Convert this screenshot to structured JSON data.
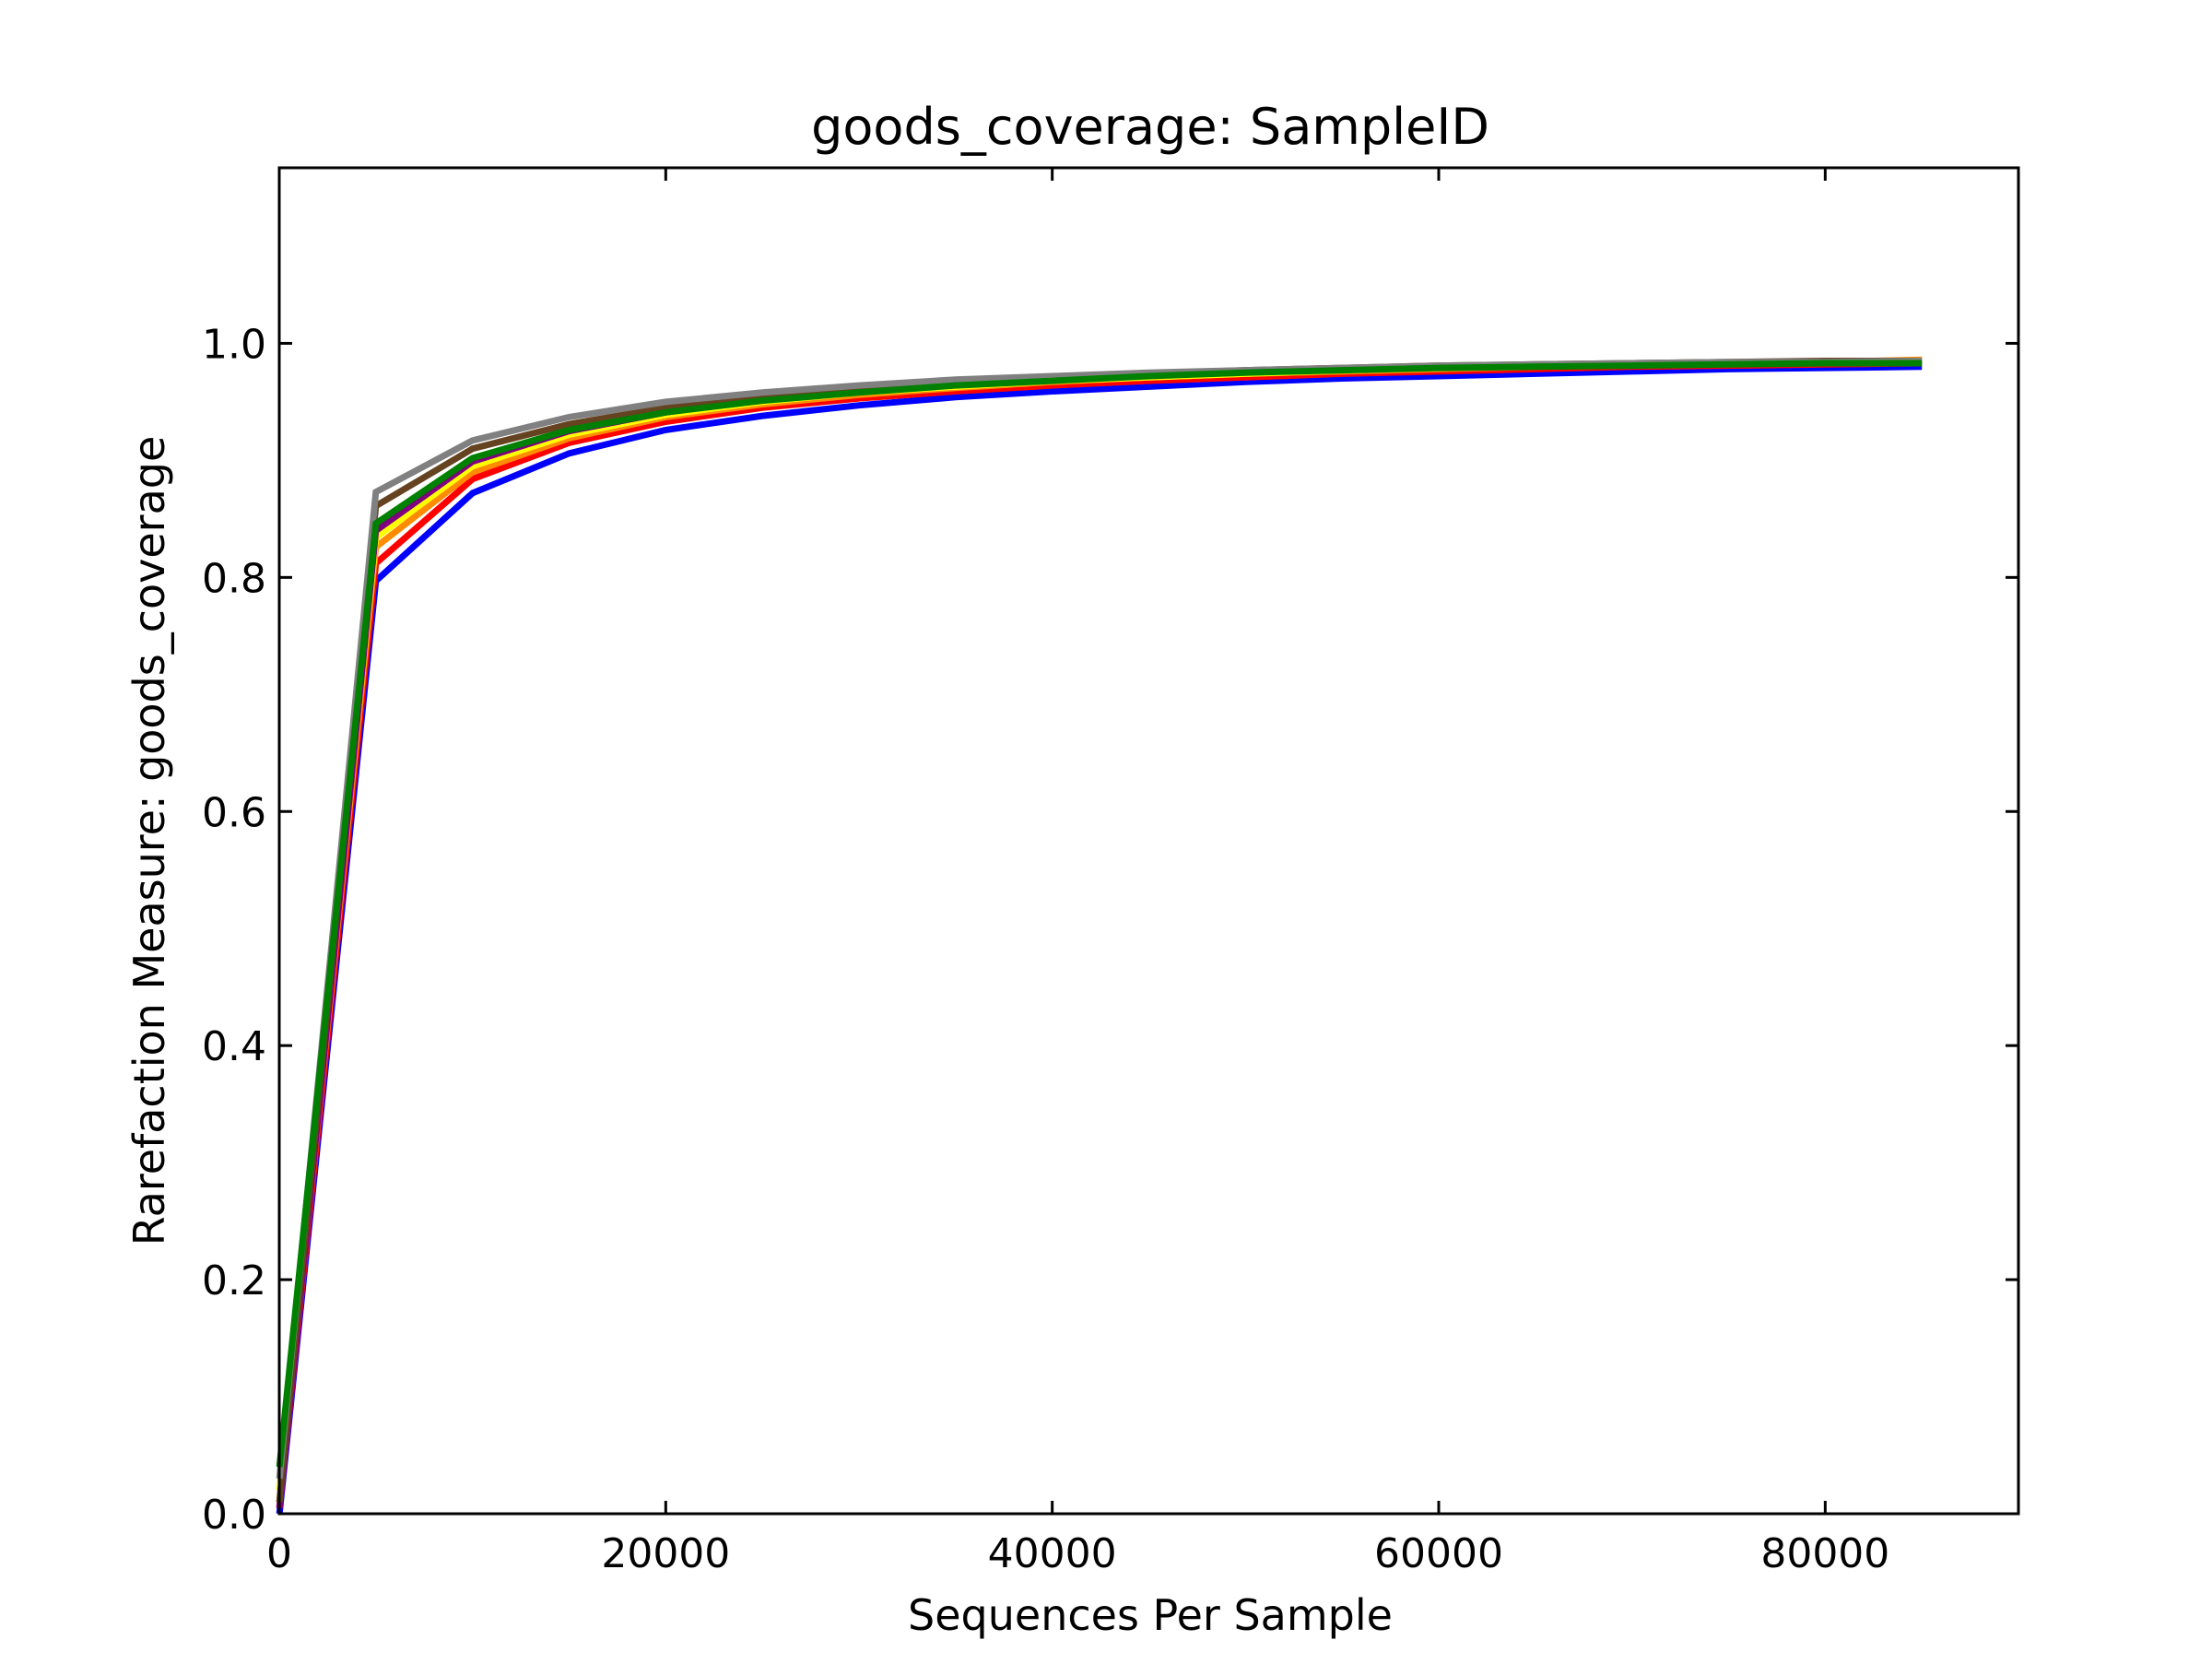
{
  "chart_data": {
    "type": "line",
    "title": "goods_coverage: SampleID",
    "xlabel": "Sequences Per Sample",
    "ylabel": "Rarefaction Measure: goods_coverage",
    "xlim": [
      0,
      90000
    ],
    "ylim": [
      0.0,
      1.15
    ],
    "xticks": [
      0,
      20000,
      40000,
      60000,
      80000
    ],
    "xtick_labels": [
      "0",
      "20000",
      "40000",
      "60000",
      "80000"
    ],
    "yticks": [
      0.0,
      0.2,
      0.4,
      0.6,
      0.8,
      1.0
    ],
    "ytick_labels": [
      "0.0",
      "0.2",
      "0.4",
      "0.6",
      "0.8",
      "1.0"
    ],
    "grid": false,
    "legend": false,
    "x": [
      10,
      5000,
      10000,
      15000,
      20000,
      25000,
      30000,
      35000,
      40000,
      45000,
      50000,
      55000,
      60000,
      65000,
      70000,
      75000,
      80000,
      85000
    ],
    "series": [
      {
        "color": "#0000ff",
        "values": [
          0.0,
          0.797,
          0.872,
          0.906,
          0.926,
          0.938,
          0.947,
          0.954,
          0.959,
          0.963,
          0.967,
          0.97,
          0.972,
          0.974,
          0.976,
          0.978,
          0.979,
          0.98
        ]
      },
      {
        "color": "#ff0000",
        "values": [
          0.005,
          0.812,
          0.884,
          0.915,
          0.933,
          0.945,
          0.953,
          0.959,
          0.964,
          0.968,
          0.971,
          0.974,
          0.976,
          0.978,
          0.98,
          0.981,
          0.982,
          0.983
        ]
      },
      {
        "color": "#ff8c00",
        "values": [
          0.01,
          0.826,
          0.89,
          0.919,
          0.937,
          0.948,
          0.956,
          0.962,
          0.967,
          0.971,
          0.974,
          0.976,
          0.978,
          0.98,
          0.982,
          0.983,
          0.984,
          0.986
        ]
      },
      {
        "color": "#ffff00",
        "values": [
          0.02,
          0.834,
          0.895,
          0.922,
          0.939,
          0.95,
          0.958,
          0.963,
          0.968,
          0.971,
          0.974,
          0.977,
          0.979,
          0.981,
          0.982,
          0.983,
          0.984,
          0.985
        ]
      },
      {
        "color": "#800080",
        "values": [
          0.005,
          0.84,
          0.899,
          0.925,
          0.941,
          0.952,
          0.959,
          0.965,
          0.969,
          0.973,
          0.976,
          0.978,
          0.98,
          0.981,
          0.982,
          0.983,
          0.984,
          0.984
        ]
      },
      {
        "color": "#654321",
        "values": [
          0.01,
          0.861,
          0.91,
          0.931,
          0.945,
          0.955,
          0.962,
          0.967,
          0.971,
          0.974,
          0.977,
          0.979,
          0.981,
          0.982,
          0.983,
          0.984,
          0.985,
          0.985
        ]
      },
      {
        "color": "#808080",
        "values": [
          0.03,
          0.873,
          0.917,
          0.937,
          0.95,
          0.958,
          0.964,
          0.969,
          0.972,
          0.975,
          0.977,
          0.979,
          0.981,
          0.982,
          0.983,
          0.984,
          0.984,
          0.985
        ]
      },
      {
        "color": "#008000",
        "values": [
          0.04,
          0.846,
          0.902,
          0.926,
          0.941,
          0.951,
          0.958,
          0.964,
          0.968,
          0.972,
          0.975,
          0.977,
          0.979,
          0.98,
          0.981,
          0.982,
          0.983,
          0.983
        ]
      }
    ]
  }
}
